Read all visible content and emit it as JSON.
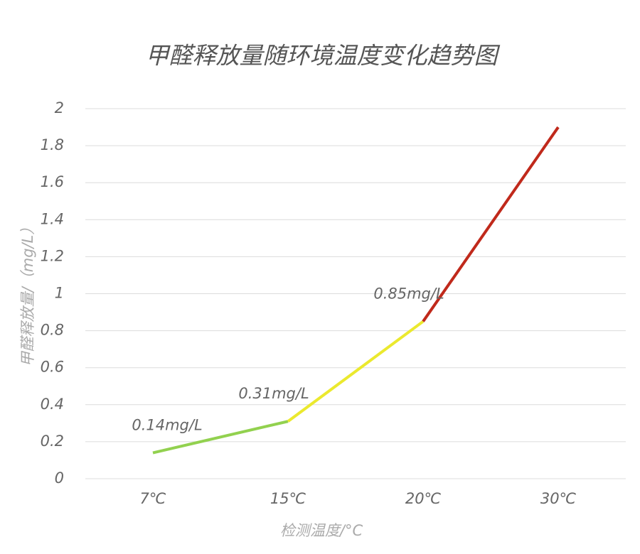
{
  "chart_data": {
    "type": "line",
    "title": "甲醛释放量随环境温度变化趋势图",
    "x_label": "检测温度/°C",
    "y_label": "甲醛释放量/（mg/L）",
    "categories": [
      "7℃",
      "15℃",
      "20℃",
      "30℃"
    ],
    "series": [
      {
        "values": [
          0.14,
          0.31,
          0.85,
          1.9
        ],
        "value_labels": [
          "0.14mg/L",
          "0.31mg/L",
          "0.85mg/L",
          null
        ],
        "segment_colors": [
          "#92d14f",
          "#ebe92e",
          "#c0291b"
        ]
      }
    ],
    "ylim": [
      0,
      2
    ],
    "yticks": [
      0,
      0.2,
      0.4,
      0.6,
      0.8,
      1,
      1.2,
      1.4,
      1.6,
      1.8,
      2
    ],
    "grid": true
  }
}
